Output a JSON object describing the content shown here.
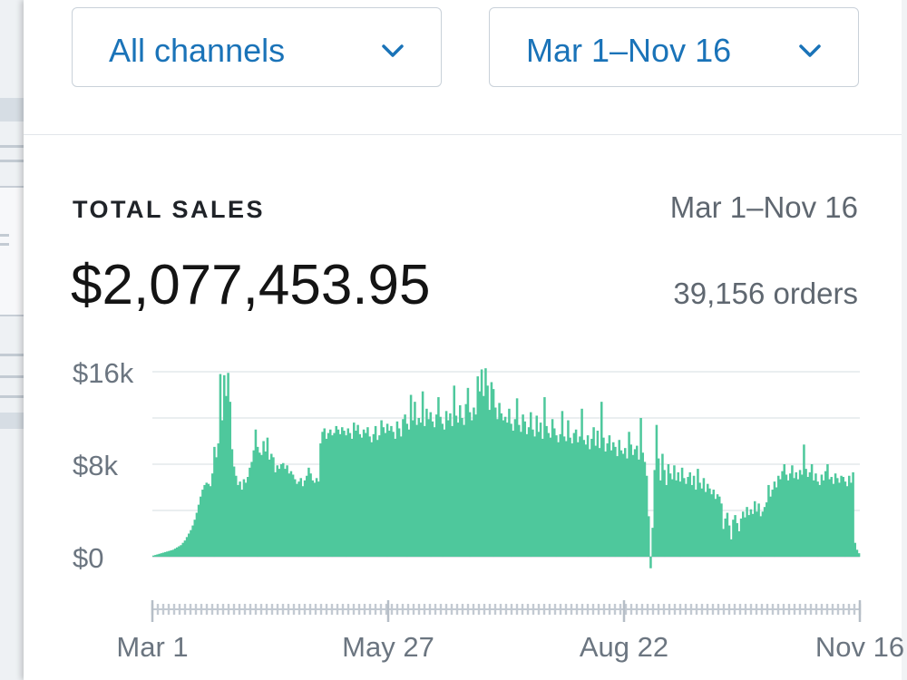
{
  "filters": {
    "channel": {
      "value": "All channels",
      "icon": "chevron-down-icon"
    },
    "date_range": {
      "value": "Mar 1–Nov 16",
      "icon": "chevron-down-icon"
    }
  },
  "summary": {
    "title": "TOTAL SALES",
    "range": "Mar 1–Nov 16",
    "total": "$2,077,453.95",
    "orders": "39,156 orders"
  },
  "colors": {
    "accent": "#1a73b8",
    "bar": "#4ec89c"
  },
  "chart_data": {
    "type": "bar",
    "title": "",
    "xlabel": "",
    "ylabel": "",
    "ylim": [
      0,
      16000
    ],
    "yticks": [
      {
        "value": 16000,
        "label": "$16k"
      },
      {
        "value": 8000,
        "label": "$8k"
      },
      {
        "value": 0,
        "label": "$0"
      }
    ],
    "xticks": [
      "Mar 1",
      "May 27",
      "Aug 22",
      "Nov 16"
    ],
    "grid": true,
    "legend": "none",
    "x_start": "Mar 1",
    "x_end": "Nov 16",
    "values": [
      100,
      150,
      200,
      250,
      300,
      350,
      400,
      450,
      500,
      550,
      600,
      700,
      800,
      900,
      1000,
      1200,
      1400,
      1700,
      2000,
      2300,
      2700,
      3200,
      3800,
      4500,
      5200,
      5800,
      6200,
      6400,
      6300,
      6100,
      7200,
      9500,
      8600,
      9800,
      15800,
      11800,
      15700,
      13900,
      15900,
      13400,
      9300,
      7800,
      7000,
      6200,
      6500,
      5800,
      6700,
      6400,
      6900,
      7700,
      8200,
      9200,
      11000,
      9500,
      9000,
      8800,
      10000,
      9100,
      10300,
      8400,
      8900,
      8600,
      7300,
      7900,
      7600,
      8000,
      8100,
      7600,
      7900,
      7200,
      7400,
      7100,
      6700,
      6300,
      6500,
      6800,
      6100,
      6600,
      7000,
      7700,
      7200,
      6600,
      6400,
      6800,
      6500,
      9800,
      10800,
      11100,
      10200,
      10700,
      11000,
      10500,
      10700,
      11300,
      11000,
      10600,
      11200,
      10900,
      10500,
      11100,
      10700,
      10200,
      11600,
      10900,
      11400,
      10600,
      10300,
      11000,
      10700,
      11200,
      10400,
      9900,
      10600,
      11300,
      10100,
      10500,
      11800,
      11200,
      10700,
      11500,
      10900,
      11300,
      10800,
      10200,
      11700,
      11100,
      10400,
      11900,
      12300,
      11500,
      11000,
      14000,
      11800,
      13400,
      11400,
      12000,
      11600,
      14300,
      11300,
      12800,
      11900,
      12500,
      11700,
      11200,
      12300,
      13800,
      12100,
      11500,
      11000,
      12600,
      11800,
      12400,
      11300,
      14800,
      12200,
      11600,
      13100,
      12000,
      11400,
      13200,
      14600,
      12500,
      11800,
      12900,
      12300,
      15600,
      14300,
      16200,
      13900,
      16300,
      14800,
      12700,
      15100,
      14500,
      12900,
      11900,
      13300,
      12400,
      11800,
      12100,
      11600,
      12800,
      11500,
      10900,
      11900,
      13700,
      11400,
      10800,
      12300,
      11700,
      10600,
      11200,
      12500,
      11000,
      10400,
      12200,
      10800,
      11600,
      10200,
      13800,
      11300,
      10700,
      10300,
      11900,
      11100,
      10500,
      9900,
      10600,
      12600,
      10400,
      10000,
      11800,
      10300,
      9800,
      10700,
      11000,
      9900,
      10400,
      12800,
      10100,
      9700,
      10500,
      9300,
      10200,
      11200,
      9600,
      10900,
      9400,
      13400,
      10300,
      9100,
      9800,
      10500,
      9200,
      9900,
      9500,
      8700,
      10100,
      9200,
      8900,
      9400,
      8500,
      10800,
      9700,
      8800,
      9300,
      9600,
      8400,
      12000,
      9000,
      8200,
      7000,
      3500,
      -1000,
      2500,
      7500,
      11400,
      8500,
      6600,
      8900,
      7500,
      6200,
      8000,
      7200,
      6700,
      7900,
      6600,
      7300,
      6500,
      7700,
      6800,
      6300,
      6900,
      7300,
      6200,
      7000,
      5800,
      7600,
      6400,
      5900,
      6800,
      5600,
      6300,
      5900,
      5400,
      5800,
      5000,
      5400,
      5200,
      4600,
      2400,
      3300,
      3800,
      2700,
      1500,
      3200,
      3600,
      2900,
      2200,
      3300,
      3900,
      3400,
      4300,
      3600,
      4100,
      3700,
      4800,
      3900,
      4600,
      3500,
      3900,
      4300,
      4700,
      6200,
      5200,
      5800,
      6500,
      6000,
      7000,
      6700,
      7400,
      8000,
      7100,
      6600,
      7200,
      7900,
      6800,
      7300,
      6700,
      7500,
      7100,
      9700,
      7600,
      6900,
      7300,
      8000,
      6600,
      7200,
      6500,
      6200,
      7100,
      6600,
      7400,
      8000,
      6700,
      6900,
      6300,
      7200,
      6800,
      6400,
      7000,
      6900,
      6500,
      6100,
      7000,
      6400,
      7300,
      1200,
      600,
      300
    ]
  }
}
